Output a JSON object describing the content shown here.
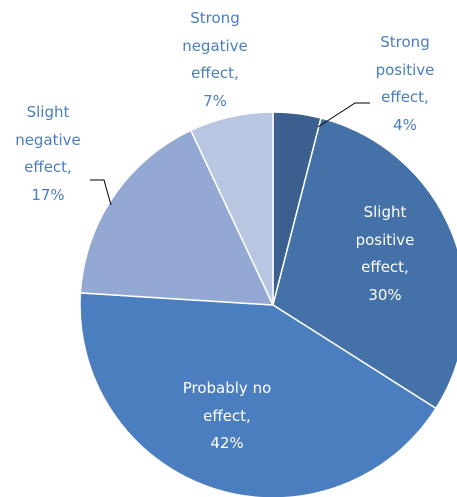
{
  "chart_data": {
    "type": "pie",
    "categories": [
      "Strong positive effect,",
      "Slight positive effect,",
      "Probably no effect,",
      "Slight negative effect,",
      "Strong negative effect,"
    ],
    "values": [
      4,
      30,
      42,
      17,
      7
    ],
    "value_labels": [
      "4%",
      "30%",
      "42%",
      "17%",
      "7%"
    ],
    "colors": [
      "#3b5f8f",
      "#4571a9",
      "#4b7ebf",
      "#93a8d2",
      "#b8c6e1"
    ]
  }
}
